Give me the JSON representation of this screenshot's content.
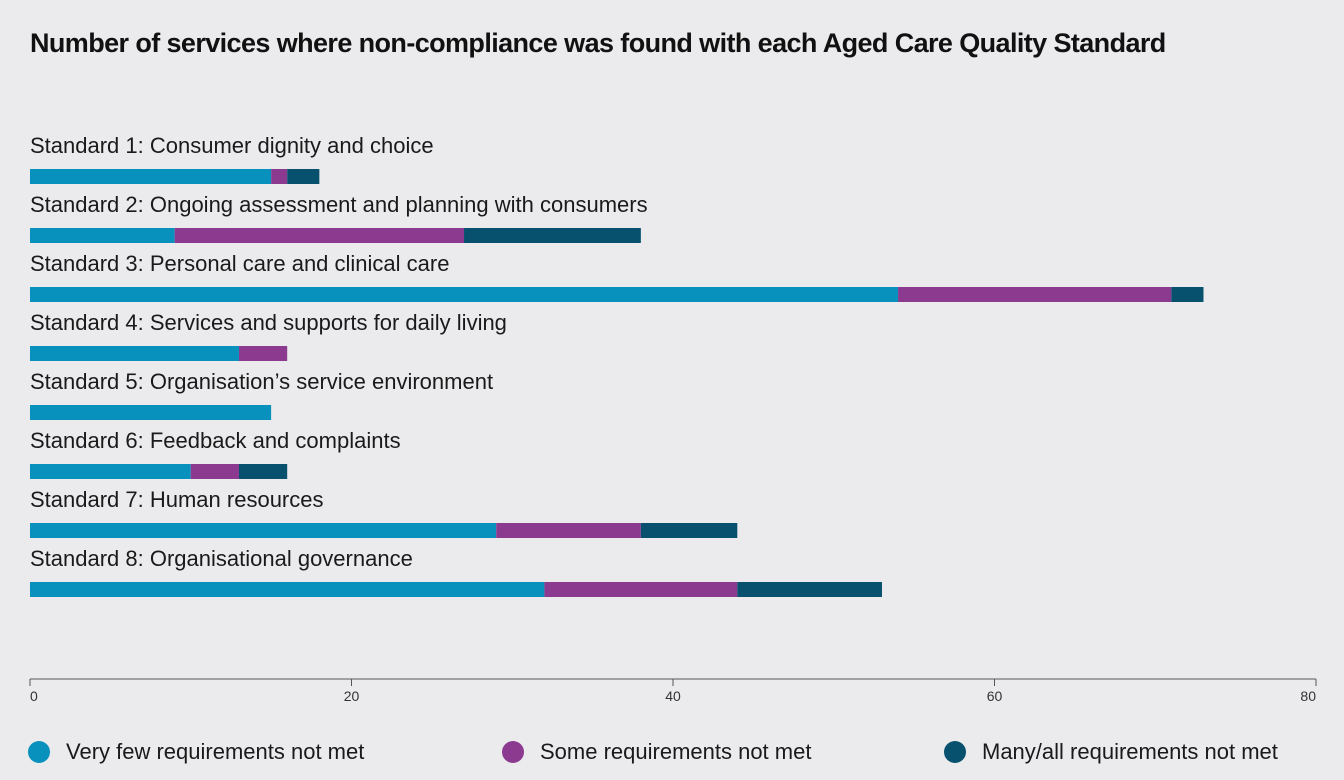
{
  "chart_data": {
    "type": "bar",
    "orientation": "horizontal",
    "stacked": true,
    "title": "Number of services where non-compliance was found with each Aged Care Quality Standard",
    "categories": [
      "Standard 1: Consumer dignity and choice",
      "Standard 2: Ongoing assessment and planning with consumers",
      "Standard 3: Personal care and clinical care",
      "Standard 4: Services and supports for daily living",
      "Standard 5: Organisation’s service environment",
      "Standard 6: Feedback and complaints",
      "Standard 7: Human resources",
      "Standard 8: Organisational governance"
    ],
    "series": [
      {
        "name": "Very few requirements not met",
        "color": "#0891bd",
        "values": [
          15,
          9,
          54,
          13,
          15,
          10,
          29,
          32
        ]
      },
      {
        "name": "Some requirements not met",
        "color": "#8b3a8f",
        "values": [
          1,
          18,
          17,
          3,
          0,
          3,
          9,
          12
        ]
      },
      {
        "name": "Many/all requirements not met",
        "color": "#07506e",
        "values": [
          2,
          11,
          2,
          0,
          0,
          3,
          6,
          9
        ]
      }
    ],
    "xlim": [
      0,
      80
    ],
    "xticks": [
      0,
      20,
      40,
      60,
      80
    ],
    "xlabel": "",
    "ylabel": "",
    "grid": false,
    "legend_position": "bottom"
  }
}
